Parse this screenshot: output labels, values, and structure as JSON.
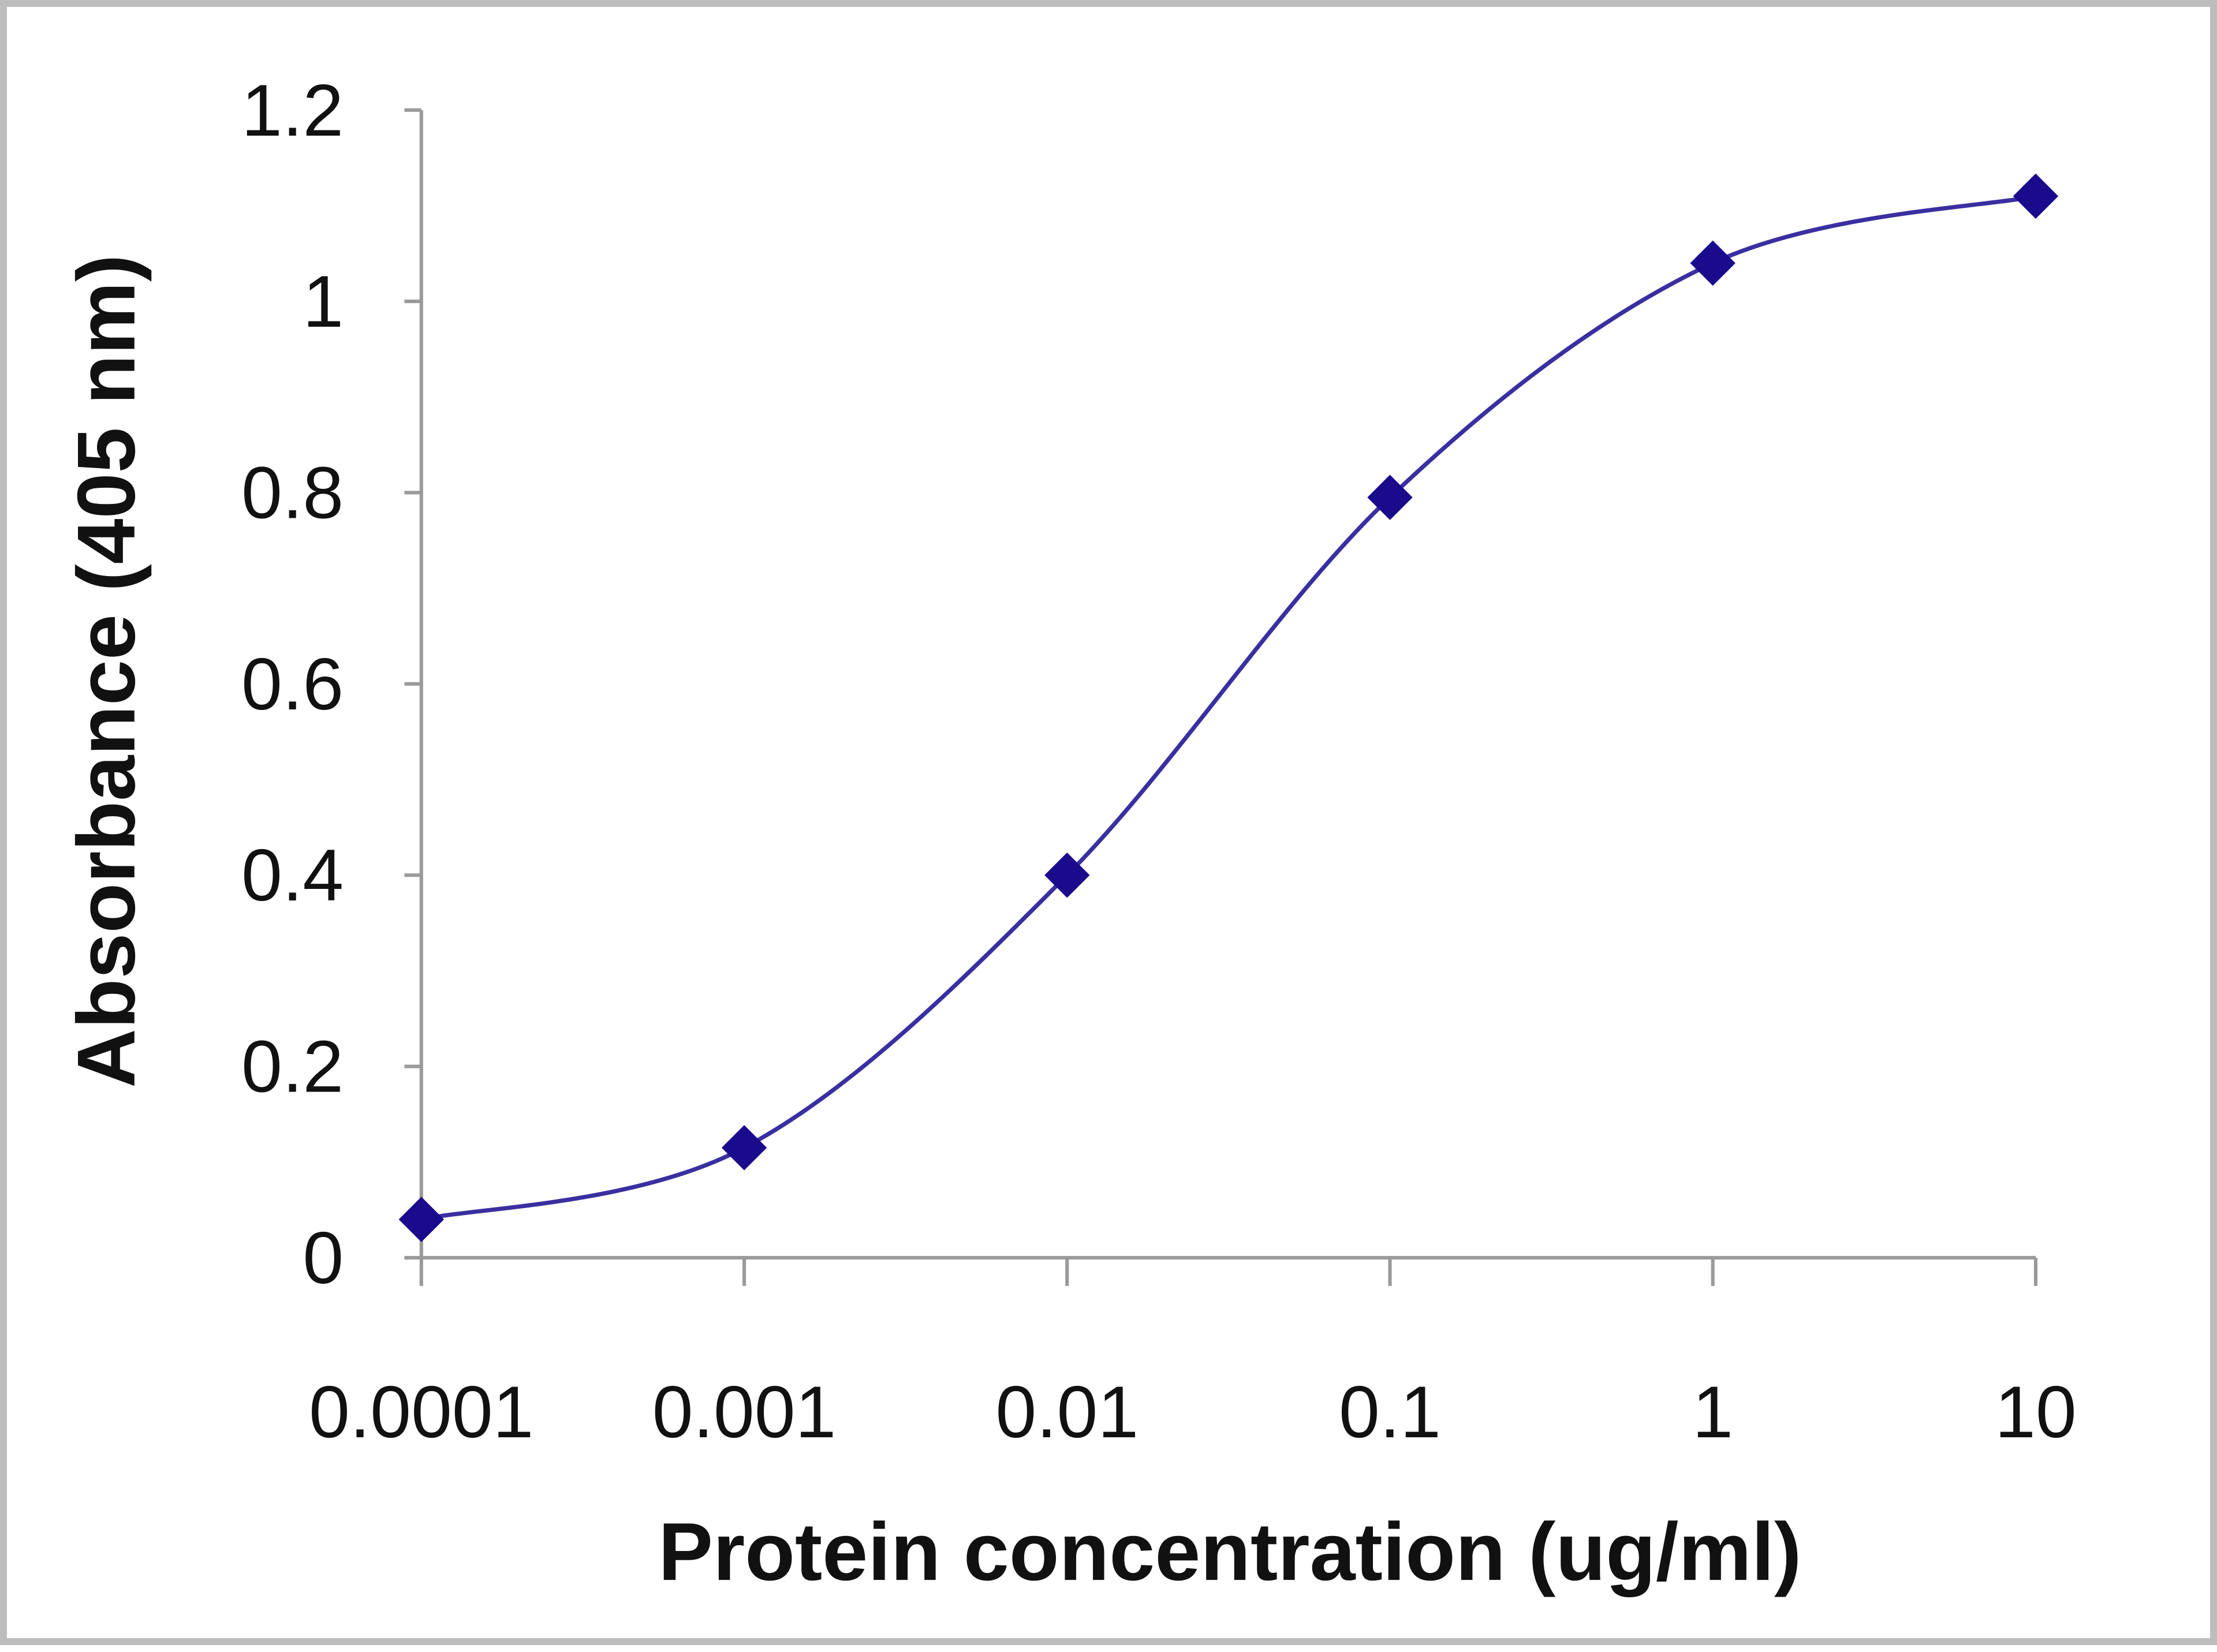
{
  "chart_data": {
    "type": "line",
    "title": "",
    "xlabel": "Protein concentration (ug/ml)",
    "ylabel": "Absorbance (405 nm)",
    "x_scale": "log",
    "categories": [
      "0.0001",
      "0.001",
      "0.01",
      "0.1",
      "1",
      "10"
    ],
    "x": [
      0.0001,
      0.001,
      0.01,
      0.1,
      1,
      10
    ],
    "series": [
      {
        "name": "Absorbance",
        "values": [
          0.04,
          0.115,
          0.4,
          0.795,
          1.04,
          1.11
        ],
        "color": "#1a0a8c",
        "marker": "diamond",
        "smooth": true
      }
    ],
    "ylim": [
      0,
      1.2
    ],
    "yticks": [
      "0",
      "0.2",
      "0.4",
      "0.6",
      "0.8",
      "1",
      "1.2"
    ],
    "grid": false,
    "legend": null
  },
  "colors": {
    "series": "#1a0a8c",
    "line": "#3a2fa0",
    "axis": "#9a9a9a",
    "border": "#bdbdbd",
    "text": "#111111"
  }
}
